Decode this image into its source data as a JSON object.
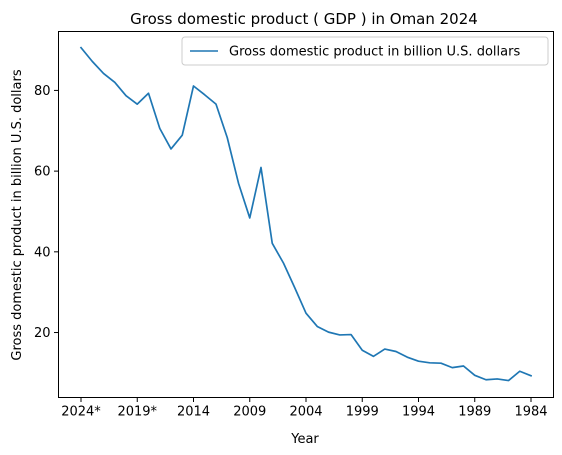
{
  "chart_data": {
    "type": "line",
    "title": "Gross domestic product ( GDP ) in Oman 2024",
    "xlabel": "Year",
    "ylabel": "Gross domestic product in billion U.S. dollars",
    "legend_position": "top-right",
    "grid": false,
    "x": [
      "2024*",
      "2023*",
      "2022*",
      "2021*",
      "2020*",
      "2019*",
      "2018",
      "2017",
      "2016",
      "2015",
      "2014",
      "2013",
      "2012",
      "2011",
      "2010",
      "2009",
      "2008",
      "2007",
      "2006",
      "2005",
      "2004",
      "2003",
      "2002",
      "2001",
      "2000",
      "1999",
      "1998",
      "1997",
      "1996",
      "1995",
      "1994",
      "1993",
      "1992",
      "1991",
      "1990",
      "1989",
      "1988",
      "1987",
      "1986",
      "1985",
      "1984"
    ],
    "x_ticks": [
      "2024*",
      "2019*",
      "2014",
      "2009",
      "2004",
      "1999",
      "1994",
      "1989",
      "1984"
    ],
    "y_ticks": [
      20,
      40,
      60,
      80
    ],
    "ylim": [
      3.9,
      94.6
    ],
    "series": [
      {
        "name": "Gross domestic product in billion U.S. dollars",
        "color": "#1f77b4",
        "values": [
          90.6,
          87.2,
          84.2,
          82.0,
          78.7,
          76.6,
          79.3,
          70.6,
          65.5,
          68.9,
          81.1,
          78.9,
          76.6,
          68.3,
          57.0,
          48.4,
          60.9,
          42.1,
          37.2,
          31.1,
          24.8,
          21.5,
          20.1,
          19.4,
          19.5,
          15.6,
          14.1,
          15.9,
          15.3,
          13.9,
          12.9,
          12.5,
          12.4,
          11.3,
          11.7,
          9.4,
          8.3,
          8.5,
          8.1,
          10.4,
          9.3
        ]
      }
    ]
  }
}
